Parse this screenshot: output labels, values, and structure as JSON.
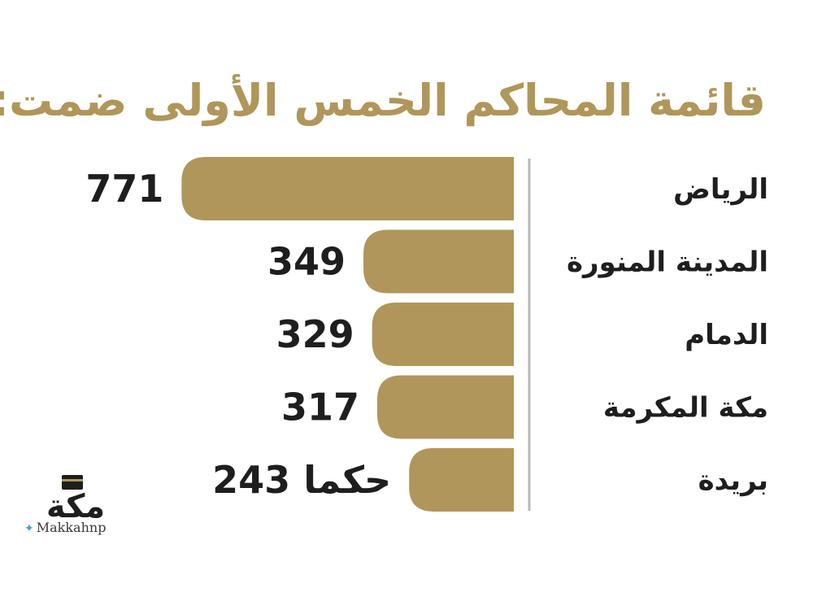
{
  "colors": {
    "bar": "#b0965a",
    "title": "#b0965a",
    "divider": "#b9b9b9",
    "text": "#1e1e1e"
  },
  "chart_data": {
    "type": "bar",
    "orientation": "horizontal",
    "title": "قائمة المحاكم الخمس الأولى ضمت:",
    "categories": [
      "الرياض",
      "المدينة المنورة",
      "الدمام",
      "مكة المكرمة",
      "بريدة"
    ],
    "values": [
      771,
      349,
      329,
      317,
      243
    ],
    "value_labels": [
      "771",
      "349",
      "329",
      "317",
      "243 حكما"
    ],
    "xlabel": "",
    "ylabel": "",
    "grid": false,
    "legend": "none"
  },
  "logo": {
    "text": "مكة",
    "handle": "Makkahnp",
    "icon": "twitter-bird-icon"
  }
}
